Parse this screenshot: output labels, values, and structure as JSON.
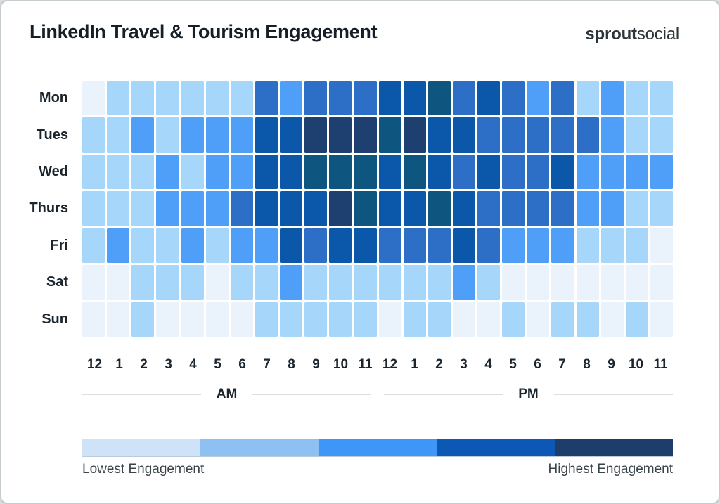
{
  "header": {
    "title": "LinkedIn Travel & Tourism Engagement",
    "logo_bold": "sprout",
    "logo_light": "social"
  },
  "chart_data": {
    "type": "heatmap",
    "title": "LinkedIn Travel & Tourism Engagement",
    "rows": [
      "Mon",
      "Tues",
      "Wed",
      "Thurs",
      "Fri",
      "Sat",
      "Sun"
    ],
    "columns": [
      "12",
      "1",
      "2",
      "3",
      "4",
      "5",
      "6",
      "7",
      "8",
      "9",
      "10",
      "11",
      "12",
      "1",
      "2",
      "3",
      "4",
      "5",
      "6",
      "7",
      "8",
      "9",
      "10",
      "11"
    ],
    "period_labels": [
      "AM",
      "PM"
    ],
    "palette": [
      "#EAF2FC",
      "#A6D7FA",
      "#4F9EF8",
      "#2D6FC7",
      "#0B58AB",
      "#0E5580",
      "#1E4070"
    ],
    "palette_meaning": "index 0 = lowest engagement, index 6 = highest engagement",
    "values": [
      [
        0,
        1,
        1,
        1,
        1,
        1,
        1,
        3,
        2,
        3,
        3,
        3,
        4,
        4,
        5,
        3,
        4,
        3,
        2,
        3,
        1,
        2,
        1,
        1
      ],
      [
        1,
        1,
        2,
        1,
        2,
        2,
        2,
        4,
        4,
        6,
        6,
        6,
        5,
        6,
        4,
        4,
        3,
        3,
        3,
        3,
        3,
        2,
        1,
        1
      ],
      [
        1,
        1,
        1,
        2,
        1,
        2,
        2,
        4,
        4,
        5,
        5,
        5,
        4,
        5,
        4,
        3,
        4,
        3,
        3,
        4,
        2,
        2,
        2,
        2
      ],
      [
        1,
        1,
        1,
        2,
        2,
        2,
        3,
        4,
        4,
        4,
        6,
        5,
        4,
        4,
        5,
        4,
        3,
        3,
        3,
        3,
        2,
        2,
        1,
        1
      ],
      [
        1,
        2,
        1,
        1,
        2,
        1,
        2,
        2,
        4,
        3,
        4,
        4,
        3,
        3,
        3,
        4,
        3,
        2,
        2,
        2,
        1,
        1,
        1,
        0
      ],
      [
        0,
        0,
        1,
        1,
        1,
        0,
        1,
        1,
        2,
        1,
        1,
        1,
        1,
        1,
        1,
        2,
        1,
        0,
        0,
        0,
        0,
        0,
        0,
        0
      ],
      [
        0,
        0,
        1,
        0,
        0,
        0,
        0,
        1,
        1,
        1,
        1,
        1,
        0,
        1,
        1,
        0,
        0,
        1,
        0,
        1,
        1,
        0,
        1,
        0
      ]
    ],
    "legend": {
      "colors": [
        "#CEE2F8",
        "#8FC0F2",
        "#3E97F7",
        "#0E58B5",
        "#1D3E6B"
      ],
      "min_label": "Lowest Engagement",
      "max_label": "Highest Engagement"
    }
  }
}
